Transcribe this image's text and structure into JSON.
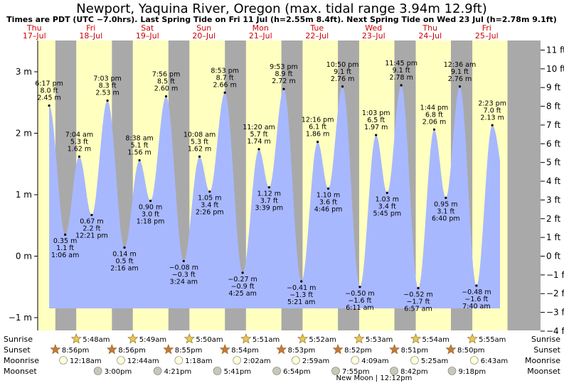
{
  "title": "Newport, Yaquina River, Oregon (max. tidal range 3.94m 12.9ft)",
  "subtitle": "Times are PDT (UTC −7.0hrs). Last Spring Tide on Fri 11 Jul (h=2.55m 8.4ft). Next Spring Tide on Wed 23 Jul (h=2.78m 9.1ft)",
  "colors": {
    "day": "#ffffc0",
    "night": "#a9a9a9",
    "water": "#a8b8ff",
    "star": "#e8c850",
    "sunset_star": "#c87838",
    "moon": "#ffffd8",
    "moonset": "#c8c8b8",
    "day_label": "#cc0000"
  },
  "chart_data": {
    "type": "area",
    "title": "Newport, Yaquina River, Oregon (max. tidal range 3.94m 12.9ft)",
    "ylabel_left": "m",
    "ylabel_right": "ft",
    "ylim_m": [
      -1.1,
      3.4
    ],
    "yticks_m": [
      "3 m",
      "2 m",
      "1 m",
      "0 m",
      "−1 m"
    ],
    "yticks_m_values": [
      3,
      2,
      1,
      0,
      -1
    ],
    "yticks_ft": [
      "11 ft",
      "10 ft",
      "9 ft",
      "8 ft",
      "7 ft",
      "6 ft",
      "5 ft",
      "4 ft",
      "3 ft",
      "2 ft",
      "1 ft",
      "0 ft",
      "−1 ft",
      "−2 ft",
      "−3 ft",
      "−4 ft"
    ],
    "yticks_ft_values": [
      11,
      10,
      9,
      8,
      7,
      6,
      5,
      4,
      3,
      2,
      1,
      0,
      -1,
      -2,
      -3,
      -4
    ],
    "days": [
      {
        "day": "Thu",
        "date": "17–Jul"
      },
      {
        "day": "Fri",
        "date": "18–Jul"
      },
      {
        "day": "Sat",
        "date": "19–Jul"
      },
      {
        "day": "Sun",
        "date": "20–Jul"
      },
      {
        "day": "Mon",
        "date": "21–Jul"
      },
      {
        "day": "Tue",
        "date": "22–Jul"
      },
      {
        "day": "Wed",
        "date": "23–Jul"
      },
      {
        "day": "Thu",
        "date": "24–Jul"
      },
      {
        "day": "Fri",
        "date": "25–Jul"
      }
    ],
    "tides": [
      {
        "type": "high",
        "day": 0,
        "time": "6:17 pm",
        "ft": "8.0 ft",
        "m": 2.45,
        "m_label": "2.45 m"
      },
      {
        "type": "low",
        "day": 1,
        "time": "1:06 am",
        "ft": "1.1 ft",
        "m": 0.35,
        "m_label": "0.35 m"
      },
      {
        "type": "high",
        "day": 1,
        "time": "7:04 am",
        "ft": "5.3 ft",
        "m": 1.62,
        "m_label": "1.62 m"
      },
      {
        "type": "low",
        "day": 1,
        "time": "12:21 pm",
        "ft": "2.2 ft",
        "m": 0.67,
        "m_label": "0.67 m"
      },
      {
        "type": "high",
        "day": 1,
        "time": "7:03 pm",
        "ft": "8.3 ft",
        "m": 2.53,
        "m_label": "2.53 m"
      },
      {
        "type": "low",
        "day": 2,
        "time": "2:16 am",
        "ft": "0.5 ft",
        "m": 0.14,
        "m_label": "0.14 m"
      },
      {
        "type": "high",
        "day": 2,
        "time": "8:38 am",
        "ft": "5.1 ft",
        "m": 1.56,
        "m_label": "1.56 m"
      },
      {
        "type": "low",
        "day": 2,
        "time": "1:18 pm",
        "ft": "3.0 ft",
        "m": 0.9,
        "m_label": "0.90 m"
      },
      {
        "type": "high",
        "day": 2,
        "time": "7:56 pm",
        "ft": "8.5 ft",
        "m": 2.6,
        "m_label": "2.60 m"
      },
      {
        "type": "low",
        "day": 3,
        "time": "3:24 am",
        "ft": "−0.3 ft",
        "m": -0.08,
        "m_label": "−0.08 m"
      },
      {
        "type": "high",
        "day": 3,
        "time": "10:08 am",
        "ft": "5.3 ft",
        "m": 1.62,
        "m_label": "1.62 m"
      },
      {
        "type": "low",
        "day": 3,
        "time": "2:26 pm",
        "ft": "3.4 ft",
        "m": 1.05,
        "m_label": "1.05 m"
      },
      {
        "type": "high",
        "day": 3,
        "time": "8:53 pm",
        "ft": "8.7 ft",
        "m": 2.66,
        "m_label": "2.66 m"
      },
      {
        "type": "low",
        "day": 4,
        "time": "4:25 am",
        "ft": "−0.9 ft",
        "m": -0.27,
        "m_label": "−0.27 m"
      },
      {
        "type": "high",
        "day": 4,
        "time": "11:20 am",
        "ft": "5.7 ft",
        "m": 1.74,
        "m_label": "1.74 m"
      },
      {
        "type": "low",
        "day": 4,
        "time": "3:39 pm",
        "ft": "3.7 ft",
        "m": 1.12,
        "m_label": "1.12 m"
      },
      {
        "type": "high",
        "day": 4,
        "time": "9:53 pm",
        "ft": "8.9 ft",
        "m": 2.72,
        "m_label": "2.72 m"
      },
      {
        "type": "low",
        "day": 5,
        "time": "5:21 am",
        "ft": "−1.3 ft",
        "m": -0.41,
        "m_label": "−0.41 m"
      },
      {
        "type": "high",
        "day": 5,
        "time": "12:16 pm",
        "ft": "6.1 ft",
        "m": 1.86,
        "m_label": "1.86 m"
      },
      {
        "type": "low",
        "day": 5,
        "time": "4:46 pm",
        "ft": "3.6 ft",
        "m": 1.1,
        "m_label": "1.10 m"
      },
      {
        "type": "high",
        "day": 5,
        "time": "10:50 pm",
        "ft": "9.1 ft",
        "m": 2.76,
        "m_label": "2.76 m"
      },
      {
        "type": "low",
        "day": 6,
        "time": "6:11 am",
        "ft": "−1.6 ft",
        "m": -0.5,
        "m_label": "−0.50 m"
      },
      {
        "type": "high",
        "day": 6,
        "time": "1:03 pm",
        "ft": "6.5 ft",
        "m": 1.97,
        "m_label": "1.97 m"
      },
      {
        "type": "low",
        "day": 6,
        "time": "5:45 pm",
        "ft": "3.4 ft",
        "m": 1.03,
        "m_label": "1.03 m"
      },
      {
        "type": "high",
        "day": 6,
        "time": "11:45 pm",
        "ft": "9.1 ft",
        "m": 2.78,
        "m_label": "2.78 m"
      },
      {
        "type": "low",
        "day": 7,
        "time": "6:57 am",
        "ft": "−1.7 ft",
        "m": -0.52,
        "m_label": "−0.52 m"
      },
      {
        "type": "high",
        "day": 7,
        "time": "1:44 pm",
        "ft": "6.8 ft",
        "m": 2.06,
        "m_label": "2.06 m"
      },
      {
        "type": "low",
        "day": 7,
        "time": "6:40 pm",
        "ft": "3.1 ft",
        "m": 0.95,
        "m_label": "0.95 m"
      },
      {
        "type": "high",
        "day": 8,
        "time": "12:36 am",
        "ft": "9.1 ft",
        "m": 2.76,
        "m_label": "2.76 m"
      },
      {
        "type": "low",
        "day": 8,
        "time": "7:40 am",
        "ft": "−1.6 ft",
        "m": -0.48,
        "m_label": "−0.48 m"
      },
      {
        "type": "high",
        "day": 8,
        "time": "2:23 pm",
        "ft": "7.0 ft",
        "m": 2.13,
        "m_label": "2.13 m"
      }
    ],
    "row_labels": [
      "Sunrise",
      "Sunset",
      "Moonrise",
      "Moonset"
    ],
    "sunrise": [
      "5:48am",
      "5:49am",
      "5:50am",
      "5:51am",
      "5:52am",
      "5:53am",
      "5:54am",
      "5:55am"
    ],
    "sunset": [
      "8:56pm",
      "8:56pm",
      "8:55pm",
      "8:54pm",
      "8:53pm",
      "8:52pm",
      "8:51pm",
      "8:50pm"
    ],
    "moonrise": [
      "12:18am",
      "12:44am",
      "1:18am",
      "2:02am",
      "2:59am",
      "4:09am",
      "5:25am",
      "6:43am"
    ],
    "moonset": [
      "3:00pm",
      "4:21pm",
      "5:41pm",
      "6:54pm",
      "7:55pm",
      "8:42pm",
      "9:18pm"
    ],
    "new_moon": "New Moon | 12:12pm"
  }
}
